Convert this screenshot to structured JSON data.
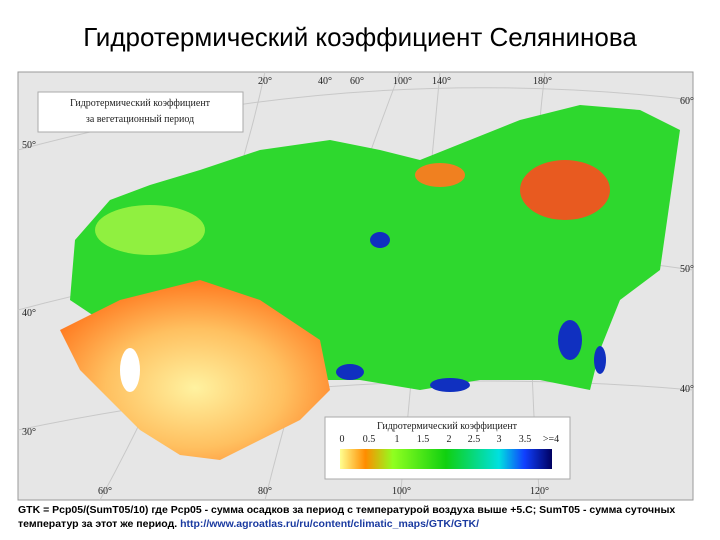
{
  "header": {
    "title": "Гидротермический коэффициент Селянинова"
  },
  "map": {
    "inset_title": [
      "Гидротермический коэффициент",
      "за вегетационный период"
    ],
    "top_labels": [
      "20°",
      "40°",
      "60°",
      "100°",
      "140°",
      "180°"
    ],
    "left_labels": [
      "50°",
      "40°",
      "30°"
    ],
    "right_labels": [
      "60°",
      "50°",
      "40°"
    ],
    "bottom_labels": [
      "60°",
      "80°",
      "100°",
      "120°"
    ],
    "legend": {
      "title": "Гидротермический коэффициент",
      "labels": [
        "0",
        "0.5",
        "1",
        "1.5",
        "2",
        "2.5",
        "3",
        "3.5",
        ">=4"
      ]
    }
  },
  "caption": {
    "text": "GTK = Pcp05/(SumT05/10) где Pcp05 - сумма осадков за период с температурой воздуха выше +5.С; SumT05 - сумма суточных температур за этот же период.",
    "link": "http://www.agroatlas.ru/ru/content/climatic_maps/GTK/GTK/"
  }
}
